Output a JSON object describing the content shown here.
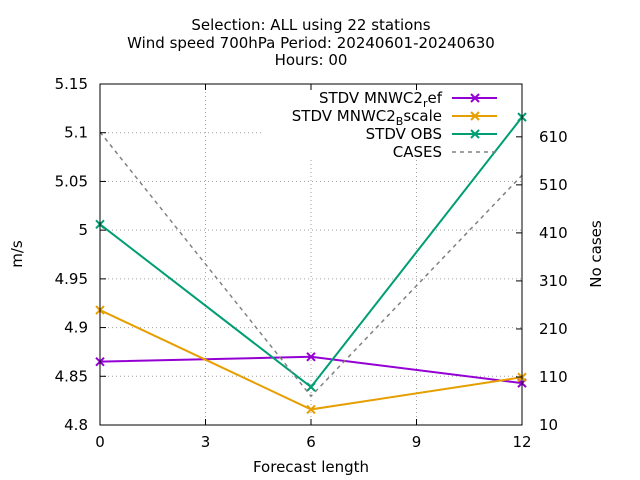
{
  "chart_data": {
    "type": "line",
    "title_lines": [
      "Selection: ALL using    22 stations",
      "Wind speed 700hPa   Period: 20240601-20240630",
      "Hours: 00"
    ],
    "xlabel": "Forecast length",
    "ylabel": "m/s",
    "y2label": "No cases",
    "x": [
      0,
      6,
      12
    ],
    "xlim": [
      0,
      12
    ],
    "xticks": [
      "0",
      "3",
      "6",
      "9",
      "12"
    ],
    "ylim": [
      4.8,
      5.15
    ],
    "yticks": [
      "4.8",
      "4.85",
      "4.9",
      "4.95",
      "5",
      "5.05",
      "5.1",
      "5.15"
    ],
    "y2lim": [
      10,
      720
    ],
    "y2ticks": [
      "10",
      "110",
      "210",
      "310",
      "410",
      "510",
      "610"
    ],
    "grid": true,
    "legend_position": "top-right",
    "series": [
      {
        "name": "STDV MNWC2_ref",
        "legend_main": "STDV MNWC2",
        "legend_sub": "r",
        "legend_tail": "ef",
        "axis": "y1",
        "color": "#9400d3",
        "marker": "x",
        "values": [
          4.865,
          4.87,
          4.843
        ]
      },
      {
        "name": "STDV MNWC2_Bscale",
        "legend_main": "STDV MNWC2",
        "legend_sub": "B",
        "legend_tail": "scale",
        "axis": "y1",
        "color": "#e69f00",
        "marker": "x",
        "values": [
          4.918,
          4.816,
          4.849
        ]
      },
      {
        "name": "STDV OBS",
        "legend_main": "STDV OBS",
        "legend_sub": "",
        "legend_tail": "",
        "axis": "y1",
        "color": "#009e73",
        "marker": "x",
        "values": [
          5.006,
          4.839,
          5.116
        ]
      },
      {
        "name": "CASES",
        "legend_main": "CASES",
        "legend_sub": "",
        "legend_tail": "",
        "axis": "y2",
        "color": "#808080",
        "marker": "none",
        "dashed": true,
        "values": [
          620,
          70,
          530
        ]
      }
    ]
  }
}
